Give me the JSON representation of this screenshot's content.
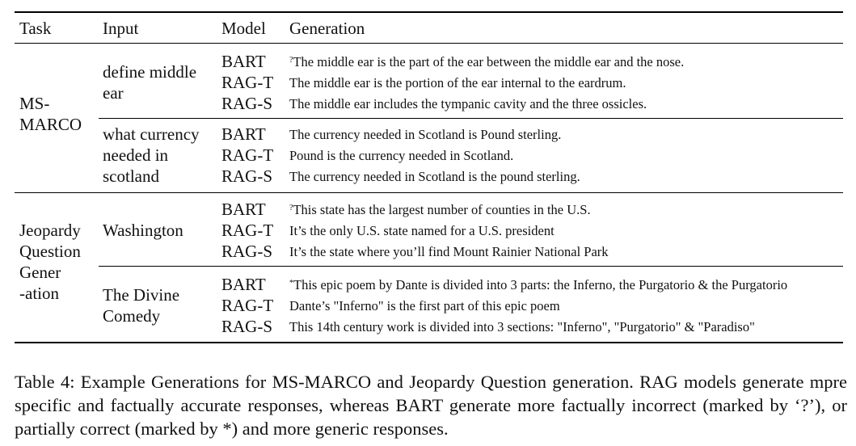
{
  "headers": [
    "Task",
    "Input",
    "Model",
    "Generation"
  ],
  "groups": [
    {
      "task_lines": [
        "MS-",
        "MARCO"
      ],
      "items": [
        {
          "input_lines": [
            "define middle",
            "ear"
          ],
          "rows": [
            {
              "model": "BART",
              "mark": "?",
              "text": "The middle ear is the part of the ear between the middle ear and the nose."
            },
            {
              "model": "RAG-T",
              "mark": "",
              "text": "The middle ear is the portion of the ear internal to the eardrum."
            },
            {
              "model": "RAG-S",
              "mark": "",
              "text": "The middle ear includes the tympanic cavity and the three ossicles."
            }
          ]
        },
        {
          "input_lines": [
            "what currency",
            "needed in",
            "scotland"
          ],
          "rows": [
            {
              "model": "BART",
              "mark": "",
              "text": "The currency needed in Scotland is Pound sterling."
            },
            {
              "model": "RAG-T",
              "mark": "",
              "text": "Pound is the currency needed in Scotland."
            },
            {
              "model": "RAG-S",
              "mark": "",
              "text": "The currency needed in Scotland is the pound sterling."
            }
          ]
        }
      ]
    },
    {
      "task_lines": [
        "Jeopardy",
        "Question",
        "Gener",
        "-ation"
      ],
      "items": [
        {
          "input_lines": [
            "Washington"
          ],
          "rows": [
            {
              "model": "BART",
              "mark": "?",
              "text": "This state has the largest number of counties in the U.S."
            },
            {
              "model": "RAG-T",
              "mark": "",
              "text": "It’s the only U.S. state named for a U.S. president"
            },
            {
              "model": "RAG-S",
              "mark": "",
              "text": "It’s the state where you’ll find Mount Rainier National Park"
            }
          ]
        },
        {
          "input_lines": [
            "The Divine",
            "Comedy"
          ],
          "rows": [
            {
              "model": "BART",
              "mark": "*",
              "text": "This epic poem by Dante is divided into 3 parts: the Inferno, the Purgatorio & the Purgatorio"
            },
            {
              "model": "RAG-T",
              "mark": "",
              "text": "Dante’s \"Inferno\" is the first part of this epic poem"
            },
            {
              "model": "RAG-S",
              "mark": "",
              "text": "This 14th century work is divided into 3 sections: \"Inferno\", \"Purgatorio\" & \"Paradiso\""
            }
          ]
        }
      ]
    }
  ],
  "caption": "Table 4: Example Generations for MS-MARCO and Jeopardy Question generation. RAG models generate mpre specific and factually accurate responses, whereas BART generate more factually incorrect (marked by ‘?’), or partially correct (marked by *) and more generic responses."
}
